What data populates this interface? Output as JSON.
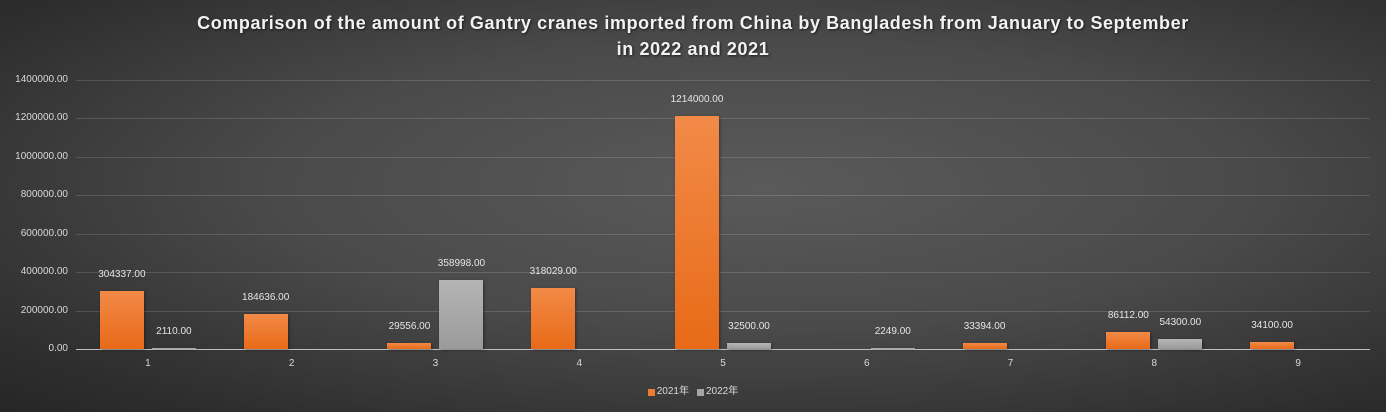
{
  "chart_data": {
    "type": "bar",
    "title": "Comparison of the amount of Gantry cranes imported from China by Bangladesh from January to September in 2022 and 2021",
    "title_lines": [
      "Comparison of the amount of Gantry cranes imported from China by Bangladesh from January to September",
      "in 2022 and 2021"
    ],
    "xlabel": "",
    "ylabel": "",
    "categories": [
      "1",
      "2",
      "3",
      "4",
      "5",
      "6",
      "7",
      "8",
      "9"
    ],
    "series": [
      {
        "name": "2021年",
        "color": "#ED7D31",
        "values": [
          304337.0,
          184636.0,
          29556.0,
          318029.0,
          1214000.0,
          null,
          33394.0,
          86112.0,
          34100.0
        ],
        "labels": [
          "304337.00",
          "184636.00",
          "29556.00",
          "318029.00",
          "1214000.00",
          "",
          "33394.00",
          "86112.00",
          "34100.00"
        ]
      },
      {
        "name": "2022年",
        "color": "#A5A5A5",
        "values": [
          2110.0,
          null,
          358998.0,
          null,
          32500.0,
          2249.0,
          null,
          54300.0,
          null
        ],
        "labels": [
          "2110.00",
          "",
          "358998.00",
          "",
          "32500.00",
          "2249.00",
          "",
          "54300.00",
          ""
        ]
      }
    ],
    "ylim": [
      0,
      1400000
    ],
    "yticks": [
      "0.00",
      "200000.00",
      "400000.00",
      "600000.00",
      "800000.00",
      "1000000.00",
      "1200000.00",
      "1400000.00"
    ],
    "grid": true,
    "legend_position": "bottom"
  }
}
